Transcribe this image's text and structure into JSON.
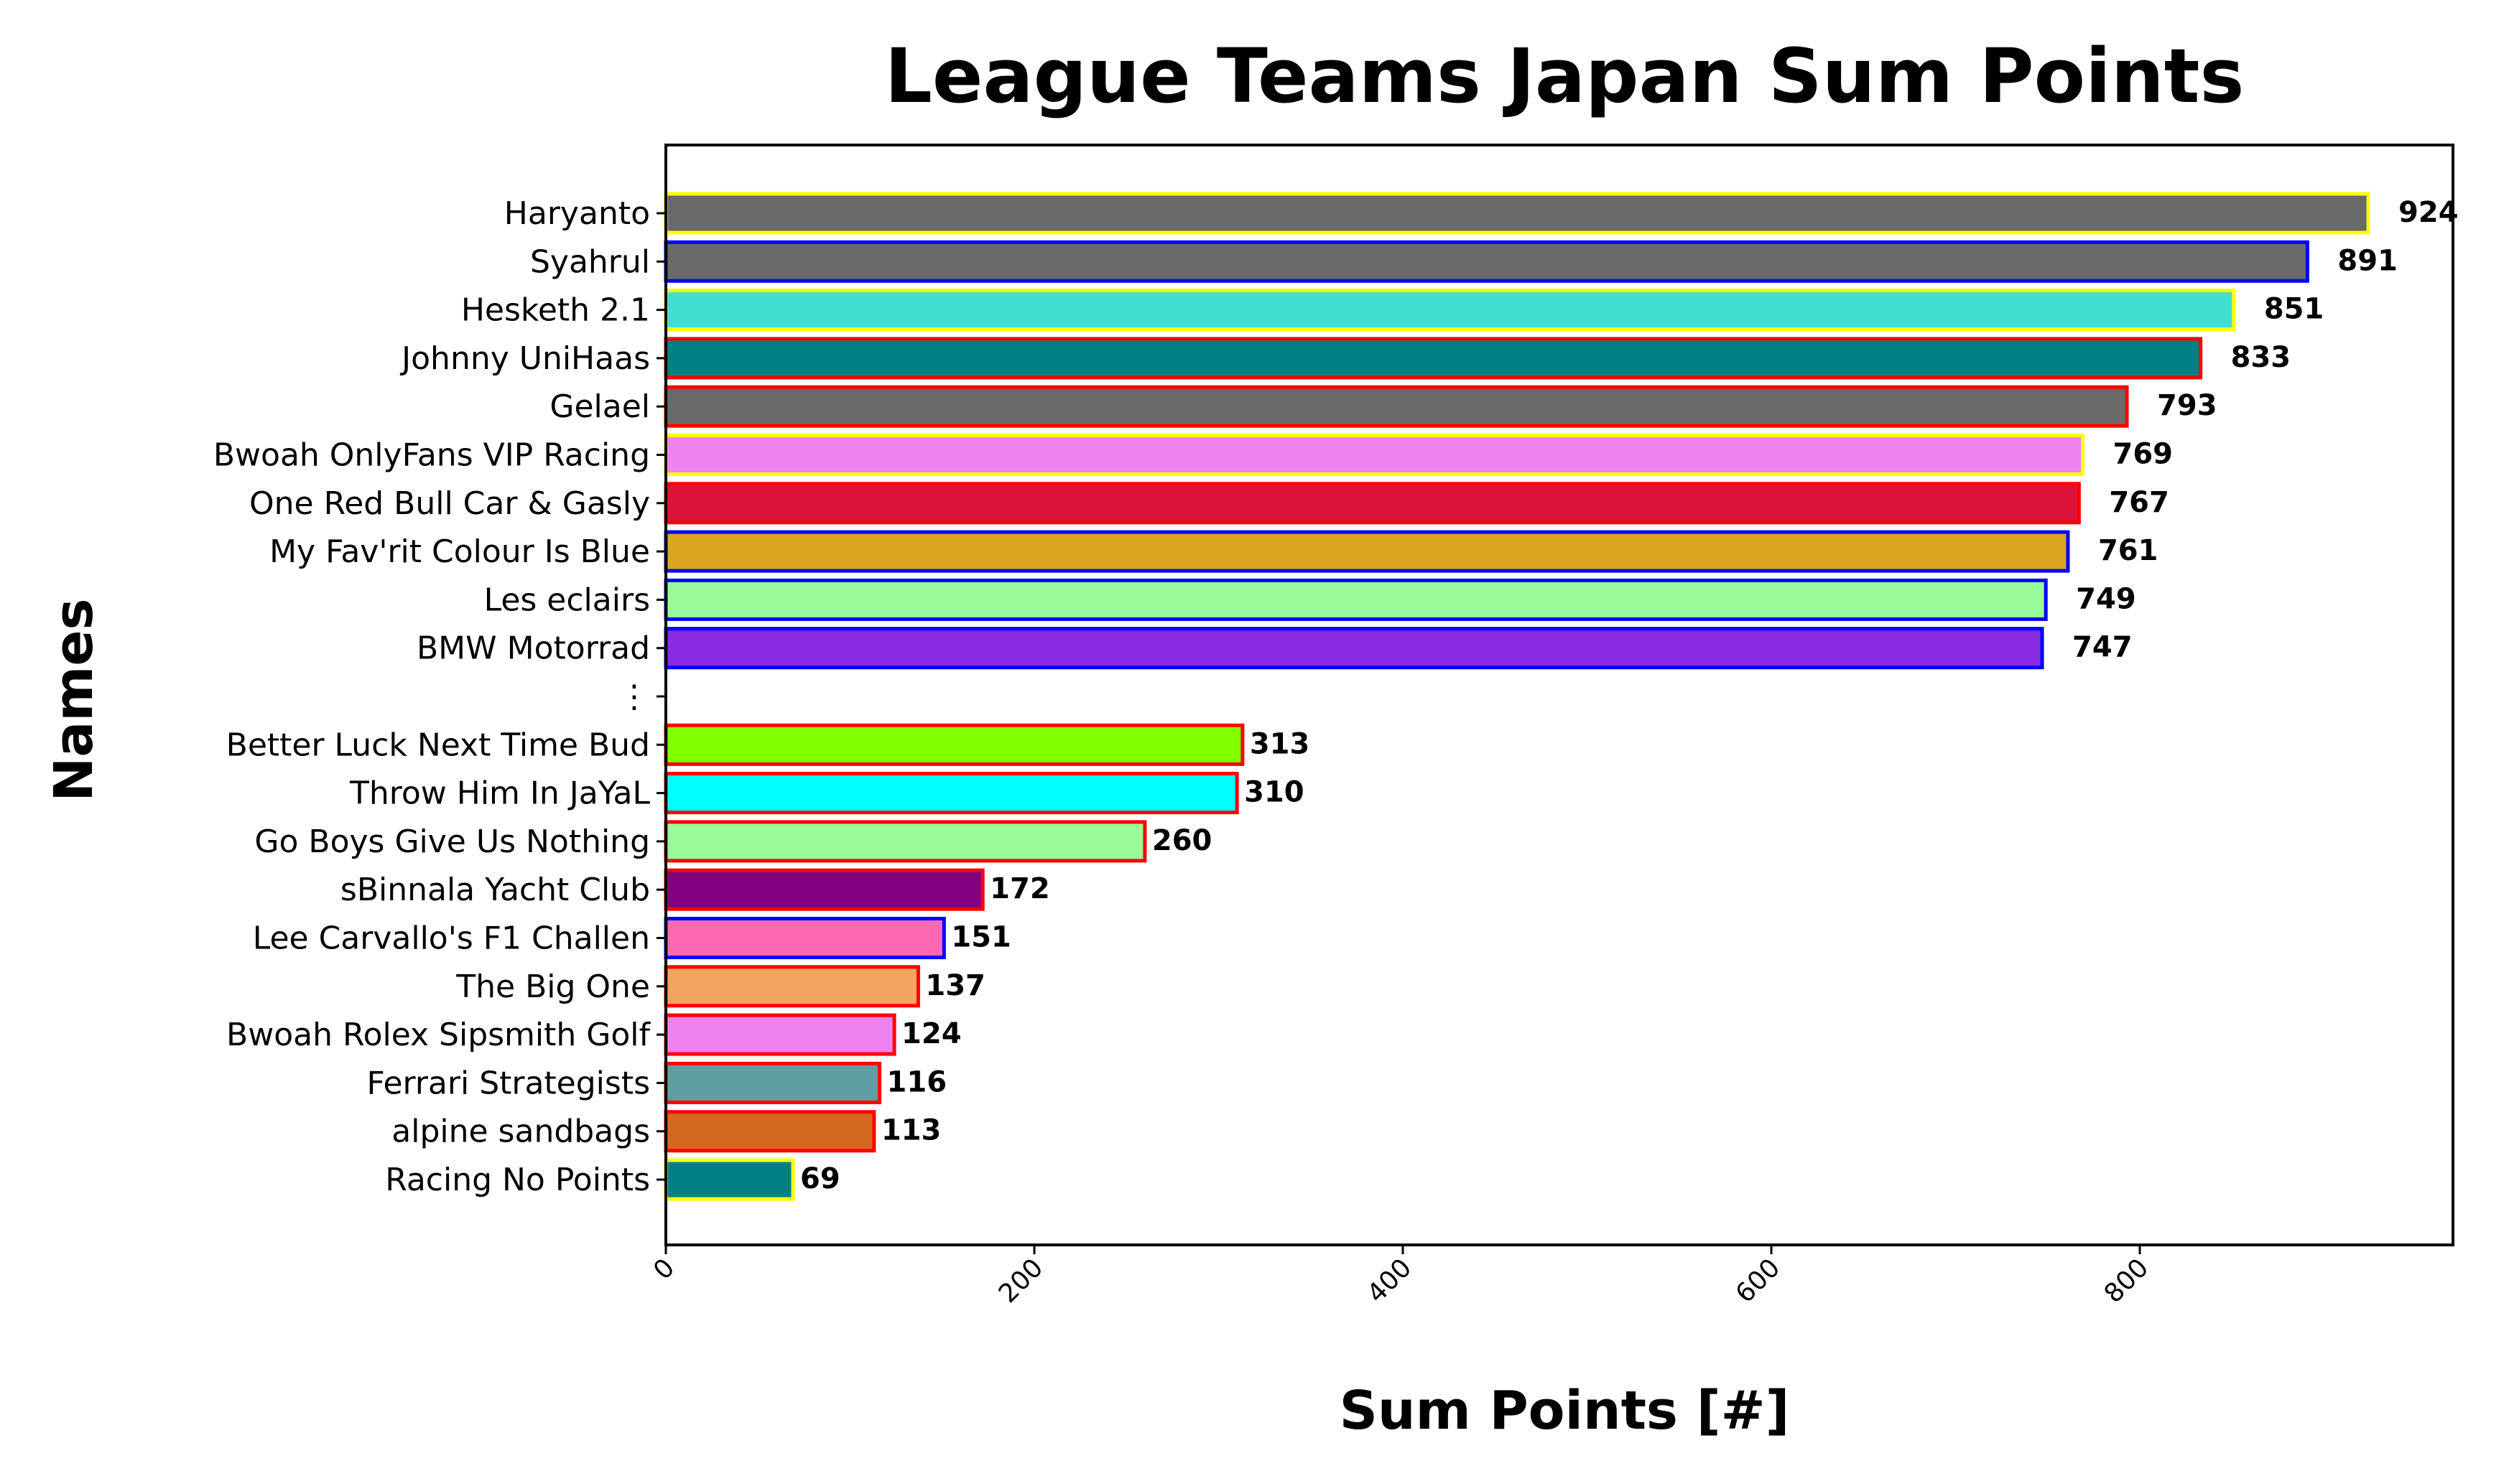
{
  "chart_data": {
    "type": "bar",
    "orientation": "horizontal",
    "title": "League Teams Japan Sum Points",
    "xlabel": "Sum Points [#]",
    "ylabel": "Names",
    "xlim": [
      0,
      970
    ],
    "xticks": [
      0,
      200,
      400,
      600,
      800
    ],
    "grid": false,
    "legend": "none",
    "gap_label": "⋮",
    "bars": [
      {
        "name": "Haryanto",
        "value": 924,
        "fill": "#696969",
        "edge": "#ffff00"
      },
      {
        "name": "Syahrul",
        "value": 891,
        "fill": "#696969",
        "edge": "#0000ff"
      },
      {
        "name": "Hesketh 2.1",
        "value": 851,
        "fill": "#40e0d0",
        "edge": "#ffff00"
      },
      {
        "name": "Johnny UniHaas",
        "value": 833,
        "fill": "#008080",
        "edge": "#ff0000"
      },
      {
        "name": "Gelael",
        "value": 793,
        "fill": "#696969",
        "edge": "#ff0000"
      },
      {
        "name": "Bwoah OnlyFans VIP Racing",
        "value": 769,
        "fill": "#ee82ee",
        "edge": "#ffff00"
      },
      {
        "name": "One Red Bull Car & Gasly",
        "value": 767,
        "fill": "#dc143c",
        "edge": "#ff0000"
      },
      {
        "name": "My Fav'rit Colour Is Blue",
        "value": 761,
        "fill": "#daa520",
        "edge": "#0000ff"
      },
      {
        "name": "Les eclairs",
        "value": 749,
        "fill": "#98fb98",
        "edge": "#0000ff"
      },
      {
        "name": "BMW Motorrad",
        "value": 747,
        "fill": "#8a2be2",
        "edge": "#0000ff"
      },
      {
        "name": "⋮",
        "value": null,
        "gap": true
      },
      {
        "name": "Better Luck Next Time Bud",
        "value": 313,
        "fill": "#7fff00",
        "edge": "#ff0000"
      },
      {
        "name": "Throw Him In JaYaL",
        "value": 310,
        "fill": "#00ffff",
        "edge": "#ff0000"
      },
      {
        "name": "Go Boys Give Us Nothing",
        "value": 260,
        "fill": "#98fb98",
        "edge": "#ff0000"
      },
      {
        "name": "sBinnala Yacht Club",
        "value": 172,
        "fill": "#800080",
        "edge": "#ff0000"
      },
      {
        "name": "Lee Carvallo's F1 Challen",
        "value": 151,
        "fill": "#ff69b4",
        "edge": "#0000ff"
      },
      {
        "name": "The Big One",
        "value": 137,
        "fill": "#f4a460",
        "edge": "#ff0000"
      },
      {
        "name": "Bwoah Rolex Sipsmith Golf",
        "value": 124,
        "fill": "#ee82ee",
        "edge": "#ff0000"
      },
      {
        "name": "Ferrari Strategists",
        "value": 116,
        "fill": "#5f9ea0",
        "edge": "#ff0000"
      },
      {
        "name": "alpine sandbags",
        "value": 113,
        "fill": "#d2691e",
        "edge": "#ff0000"
      },
      {
        "name": "Racing No Points",
        "value": 69,
        "fill": "#008080",
        "edge": "#ffff00"
      }
    ]
  }
}
